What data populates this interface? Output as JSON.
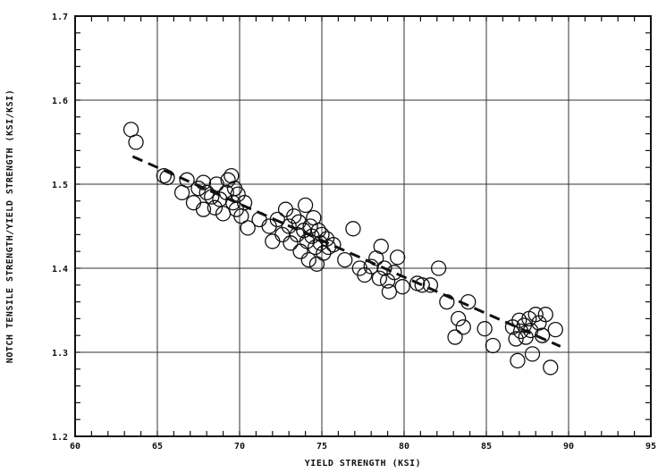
{
  "chart_data": {
    "type": "scatter",
    "title": "",
    "xlabel": "YIELD STRENGTH (KSI)",
    "ylabel": "NOTCH TENSILE STRENGTH/YIELD STRENGTH (KSI/KSI)",
    "xlim": [
      60,
      95
    ],
    "ylim": [
      1.2,
      1.7
    ],
    "x_ticks": [
      60,
      65,
      70,
      75,
      80,
      85,
      90,
      95
    ],
    "x_tick_labels": [
      "60",
      "65",
      "70",
      "75",
      "80",
      "85",
      "90",
      "95"
    ],
    "y_ticks": [
      1.2,
      1.3,
      1.4,
      1.5,
      1.6,
      1.7
    ],
    "y_tick_labels": [
      "1.2",
      "1.3",
      "1.4",
      "1.5",
      "1.6",
      "1.7"
    ],
    "grid": true,
    "marker": "open-circle",
    "trend_line": {
      "style": "dashed",
      "points": [
        [
          63.5,
          1.533
        ],
        [
          89.5,
          1.307
        ]
      ]
    },
    "points": [
      [
        63.4,
        1.565
      ],
      [
        63.7,
        1.55
      ],
      [
        65.4,
        1.51
      ],
      [
        65.6,
        1.508
      ],
      [
        66.5,
        1.49
      ],
      [
        66.8,
        1.505
      ],
      [
        67.2,
        1.478
      ],
      [
        67.5,
        1.495
      ],
      [
        67.8,
        1.502
      ],
      [
        67.8,
        1.47
      ],
      [
        68.0,
        1.49
      ],
      [
        68.3,
        1.485
      ],
      [
        68.5,
        1.472
      ],
      [
        68.6,
        1.5
      ],
      [
        68.8,
        1.482
      ],
      [
        69.0,
        1.465
      ],
      [
        69.2,
        1.49
      ],
      [
        69.3,
        1.505
      ],
      [
        69.5,
        1.51
      ],
      [
        69.6,
        1.478
      ],
      [
        69.7,
        1.495
      ],
      [
        69.8,
        1.47
      ],
      [
        69.9,
        1.488
      ],
      [
        70.1,
        1.462
      ],
      [
        70.3,
        1.478
      ],
      [
        70.5,
        1.448
      ],
      [
        71.2,
        1.458
      ],
      [
        71.8,
        1.45
      ],
      [
        72.0,
        1.432
      ],
      [
        72.3,
        1.458
      ],
      [
        72.6,
        1.44
      ],
      [
        72.8,
        1.47
      ],
      [
        73.0,
        1.45
      ],
      [
        73.1,
        1.43
      ],
      [
        73.3,
        1.462
      ],
      [
        73.5,
        1.44
      ],
      [
        73.6,
        1.455
      ],
      [
        73.7,
        1.42
      ],
      [
        73.9,
        1.445
      ],
      [
        74.0,
        1.475
      ],
      [
        74.1,
        1.432
      ],
      [
        74.2,
        1.41
      ],
      [
        74.3,
        1.45
      ],
      [
        74.4,
        1.438
      ],
      [
        74.5,
        1.46
      ],
      [
        74.6,
        1.425
      ],
      [
        74.7,
        1.405
      ],
      [
        74.8,
        1.445
      ],
      [
        74.9,
        1.43
      ],
      [
        75.0,
        1.44
      ],
      [
        75.1,
        1.418
      ],
      [
        75.3,
        1.435
      ],
      [
        75.4,
        1.425
      ],
      [
        75.7,
        1.428
      ],
      [
        76.4,
        1.41
      ],
      [
        76.9,
        1.447
      ],
      [
        77.3,
        1.4
      ],
      [
        77.6,
        1.392
      ],
      [
        78.0,
        1.402
      ],
      [
        78.3,
        1.412
      ],
      [
        78.5,
        1.388
      ],
      [
        78.6,
        1.426
      ],
      [
        78.8,
        1.4
      ],
      [
        79.0,
        1.385
      ],
      [
        79.1,
        1.372
      ],
      [
        79.4,
        1.395
      ],
      [
        79.6,
        1.413
      ],
      [
        79.9,
        1.378
      ],
      [
        80.8,
        1.382
      ],
      [
        81.1,
        1.38
      ],
      [
        81.6,
        1.38
      ],
      [
        82.1,
        1.4
      ],
      [
        82.6,
        1.36
      ],
      [
        83.1,
        1.318
      ],
      [
        83.3,
        1.34
      ],
      [
        83.6,
        1.33
      ],
      [
        83.9,
        1.36
      ],
      [
        84.9,
        1.328
      ],
      [
        85.4,
        1.308
      ],
      [
        86.6,
        1.33
      ],
      [
        86.8,
        1.316
      ],
      [
        86.9,
        1.29
      ],
      [
        87.0,
        1.338
      ],
      [
        87.1,
        1.325
      ],
      [
        87.3,
        1.332
      ],
      [
        87.4,
        1.318
      ],
      [
        87.6,
        1.34
      ],
      [
        87.7,
        1.326
      ],
      [
        87.8,
        1.298
      ],
      [
        88.0,
        1.345
      ],
      [
        88.2,
        1.335
      ],
      [
        88.4,
        1.32
      ],
      [
        88.6,
        1.345
      ],
      [
        88.9,
        1.282
      ],
      [
        89.2,
        1.327
      ]
    ]
  }
}
